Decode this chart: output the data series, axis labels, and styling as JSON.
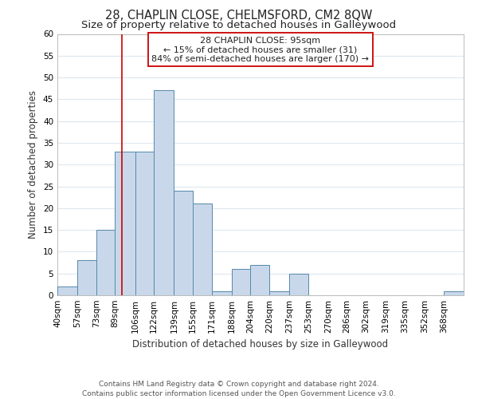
{
  "title": "28, CHAPLIN CLOSE, CHELMSFORD, CM2 8QW",
  "subtitle": "Size of property relative to detached houses in Galleywood",
  "xlabel": "Distribution of detached houses by size in Galleywood",
  "ylabel": "Number of detached properties",
  "bin_labels": [
    "40sqm",
    "57sqm",
    "73sqm",
    "89sqm",
    "106sqm",
    "122sqm",
    "139sqm",
    "155sqm",
    "171sqm",
    "188sqm",
    "204sqm",
    "220sqm",
    "237sqm",
    "253sqm",
    "270sqm",
    "286sqm",
    "302sqm",
    "319sqm",
    "335sqm",
    "352sqm",
    "368sqm"
  ],
  "bin_edges": [
    40,
    57,
    73,
    89,
    106,
    122,
    139,
    155,
    171,
    188,
    204,
    220,
    237,
    253,
    270,
    286,
    302,
    319,
    335,
    352,
    368,
    385
  ],
  "counts": [
    2,
    8,
    15,
    33,
    33,
    47,
    24,
    21,
    1,
    6,
    7,
    1,
    5,
    0,
    0,
    0,
    0,
    0,
    0,
    0,
    1
  ],
  "bar_color": "#c8d8ea",
  "bar_edge_color": "#5588aa",
  "grid_color": "#dde8f0",
  "vline_x": 95,
  "vline_color": "#cc0000",
  "annotation_title": "28 CHAPLIN CLOSE: 95sqm",
  "annotation_line1": "← 15% of detached houses are smaller (31)",
  "annotation_line2": "84% of semi-detached houses are larger (170) →",
  "ylim": [
    0,
    60
  ],
  "yticks": [
    0,
    5,
    10,
    15,
    20,
    25,
    30,
    35,
    40,
    45,
    50,
    55,
    60
  ],
  "footer_line1": "Contains HM Land Registry data © Crown copyright and database right 2024.",
  "footer_line2": "Contains public sector information licensed under the Open Government Licence v3.0.",
  "title_fontsize": 10.5,
  "subtitle_fontsize": 9.5,
  "axis_label_fontsize": 8.5,
  "tick_fontsize": 7.5,
  "annotation_fontsize": 8,
  "footer_fontsize": 6.5
}
